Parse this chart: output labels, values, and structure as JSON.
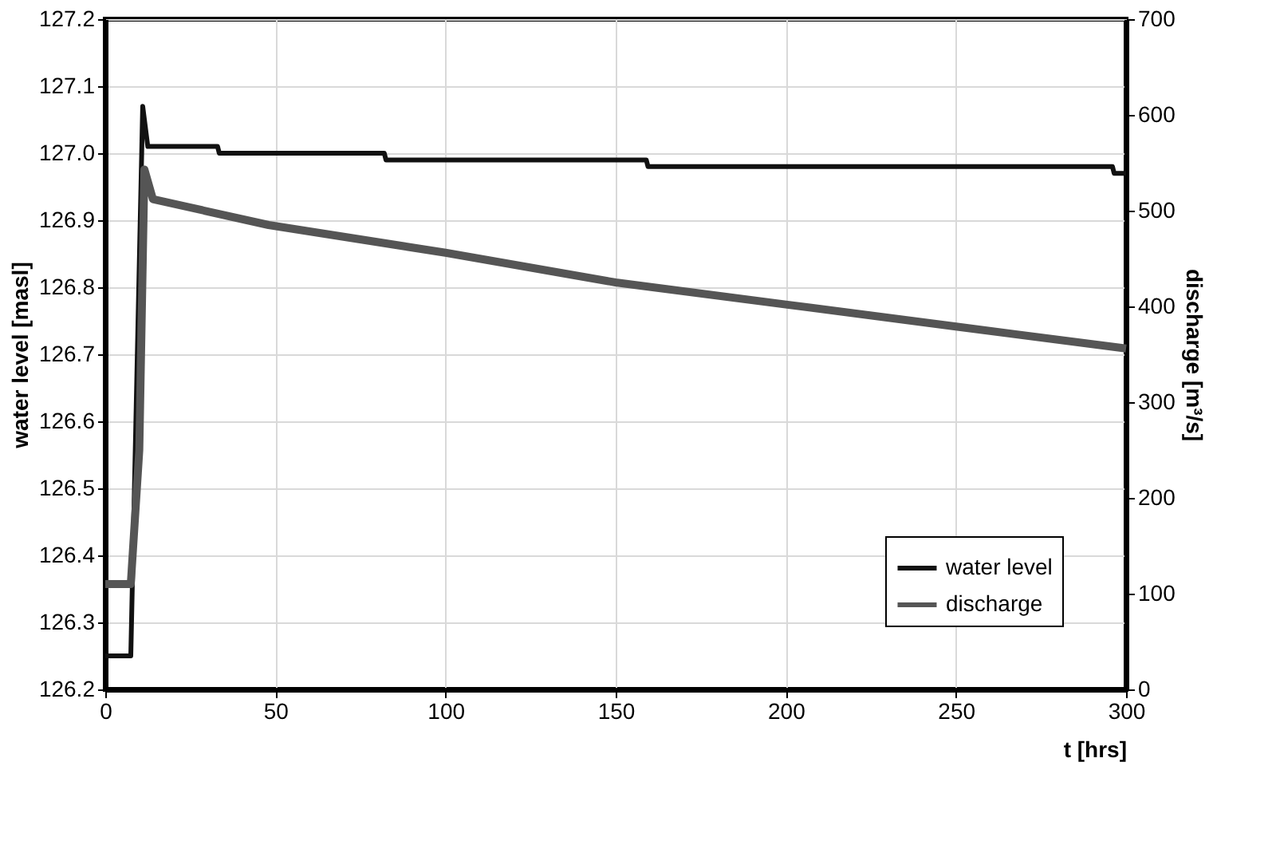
{
  "chart_data": {
    "type": "line",
    "xlabel": "t [hrs]",
    "ylabel": "water level  [masl]",
    "y2label": "discharge [m³/s]",
    "xlim": [
      0,
      300
    ],
    "xticks": [
      0,
      50,
      100,
      150,
      200,
      250,
      300
    ],
    "ylim": [
      126.2,
      127.2
    ],
    "yticks": [
      126.2,
      126.3,
      126.4,
      126.5,
      126.6,
      126.7,
      126.8,
      126.9,
      {
        "value": 127.0,
        "label": "127.0"
      },
      127.1,
      127.2
    ],
    "y2lim": [
      0,
      700
    ],
    "y2ticks": [
      0,
      100,
      200,
      300,
      400,
      500,
      600,
      700
    ],
    "grid": true,
    "legend": "bottom right",
    "marker": "none",
    "line_style": "solid",
    "series": [
      {
        "name": "water level",
        "color": "#111111",
        "x": [
          0,
          7.5,
          9,
          11,
          12.5,
          33,
          33.5,
          82,
          82.5,
          159,
          159.5,
          296,
          296.5,
          300
        ],
        "values": [
          126.25,
          126.25,
          126.6,
          127.07,
          127.01,
          127.01,
          127.0,
          127.0,
          126.99,
          126.99,
          126.98,
          126.98,
          126.97,
          126.97
        ]
      },
      {
        "name": "discharge",
        "color": "#555555",
        "axis": "y2",
        "x": [
          0,
          7.5,
          10,
          11.5,
          14,
          48,
          100,
          150,
          200,
          250,
          300
        ],
        "values": [
          110,
          110,
          250,
          543,
          512,
          485,
          456,
          425,
          402,
          379,
          356
        ]
      }
    ]
  }
}
